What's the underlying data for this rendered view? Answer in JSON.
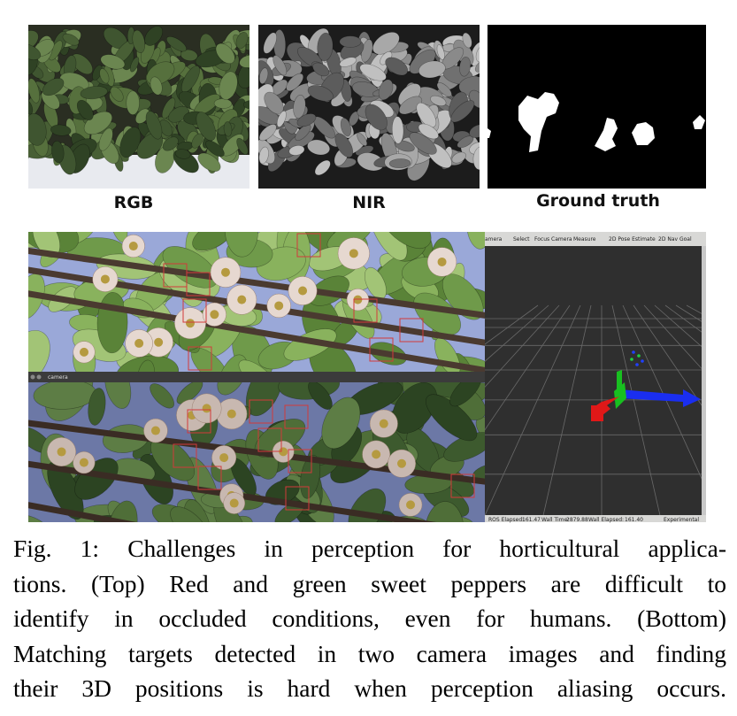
{
  "figure": {
    "panels": [
      {
        "label": "RGB"
      },
      {
        "label": "NIR"
      },
      {
        "label": "Ground truth"
      }
    ],
    "camera_window": {
      "title": "camera"
    },
    "rviz": {
      "toolbar": [
        "amera",
        "Select",
        "Focus Camera",
        "Measure",
        "2D Pose Estimate",
        "2D Nav Goal"
      ],
      "status": [
        "ROS Elapsed:",
        "161.47",
        "Wall Time:",
        "2879.88",
        "Wall Elapsed:",
        "161.40",
        "Experimental"
      ]
    },
    "caption": {
      "lines": [
        "Fig. 1: Challenges in perception for horticultural applica-",
        "tions. (Top) Red and green sweet peppers are difficult to",
        "identify in occluded conditions, even for humans. (Bottom)",
        "Matching targets detected in two camera images and finding",
        "their 3D positions is hard when perception aliasing occurs."
      ]
    }
  }
}
